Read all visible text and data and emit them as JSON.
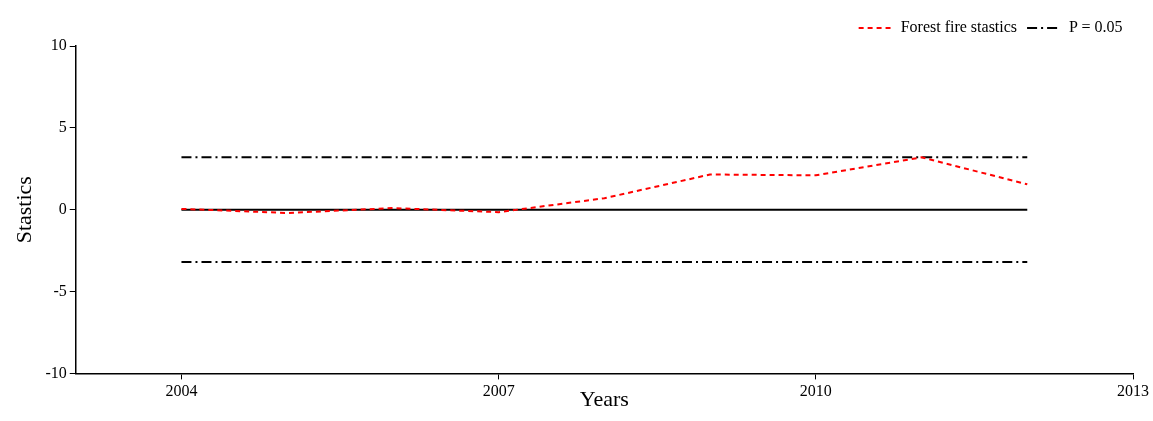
{
  "chart_data": {
    "type": "line",
    "xlabel": "Years",
    "ylabel": "Stastics",
    "xlim": [
      2003,
      2013
    ],
    "xticks": [
      2004,
      2007,
      2010,
      2013
    ],
    "ylim": [
      -10,
      10
    ],
    "yticks": [
      -10,
      -5,
      0,
      5,
      10
    ],
    "grid": false,
    "legend": "top right",
    "marker": "none",
    "series": [
      {
        "name": "Forest fire stastics",
        "color": "#ff0000",
        "line_style": "dashed",
        "x": [
          2004,
          2005,
          2006,
          2007,
          2008,
          2009,
          2010,
          2011,
          2012
        ],
        "values": [
          0.05,
          -0.2,
          0.1,
          -0.15,
          0.7,
          2.15,
          2.1,
          3.2,
          1.55
        ]
      },
      {
        "name": "P = 0.05",
        "color": "#000000",
        "line_style": "dashdot",
        "x": [
          2004,
          2012
        ],
        "values": [
          3.2,
          3.2
        ]
      },
      {
        "color": "#000000",
        "line_style": "dashdot",
        "x": [
          2004,
          2012
        ],
        "values": [
          -3.2,
          -3.2
        ]
      }
    ],
    "ref_lines": [
      {
        "axis": "y",
        "value": 0,
        "color": "#000000",
        "line_style": "solid"
      }
    ]
  }
}
